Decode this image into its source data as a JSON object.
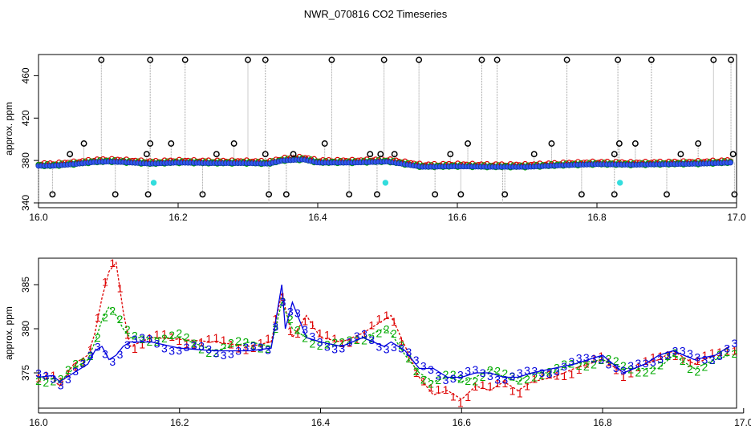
{
  "title": "NWR_070816  CO2 Timeseries",
  "colors": {
    "series1": "#dd0000",
    "series2": "#00aa00",
    "series3": "#0000dd",
    "overview_points": "#3355ee",
    "outliers": "#000000",
    "cyan_flags": "#33dddd",
    "drop_lines": "#999999",
    "axis": "#000000"
  },
  "chart_data": [
    {
      "type": "scatter",
      "panel": "top",
      "xlabel": "",
      "ylabel": "approx. ppm",
      "xlim": [
        16.0,
        17.0
      ],
      "ylim": [
        340,
        480
      ],
      "x_ticks": [
        16.0,
        16.2,
        16.4,
        16.6,
        16.8,
        17.0
      ],
      "x_tick_labels": [
        "16.0",
        "16.2",
        "16.4",
        "16.6",
        "16.8",
        "17.0"
      ],
      "y_ticks": [
        340,
        380,
        420,
        460
      ],
      "y_tick_labels": [
        "340",
        "380",
        "420",
        "460"
      ],
      "grid": false,
      "baseline": [
        [
          16.0,
          375
        ],
        [
          16.02,
          375
        ],
        [
          16.05,
          376.5
        ],
        [
          16.08,
          378.5
        ],
        [
          16.1,
          379
        ],
        [
          16.12,
          378.5
        ],
        [
          16.16,
          377
        ],
        [
          16.2,
          378
        ],
        [
          16.25,
          377.5
        ],
        [
          16.3,
          377.5
        ],
        [
          16.33,
          377
        ],
        [
          16.35,
          380
        ],
        [
          16.38,
          381
        ],
        [
          16.4,
          378
        ],
        [
          16.45,
          378
        ],
        [
          16.5,
          379
        ],
        [
          16.52,
          377
        ],
        [
          16.55,
          374
        ],
        [
          16.6,
          374.5
        ],
        [
          16.65,
          374
        ],
        [
          16.7,
          374
        ],
        [
          16.75,
          375.5
        ],
        [
          16.8,
          376.5
        ],
        [
          16.85,
          376
        ],
        [
          16.9,
          376.5
        ],
        [
          16.95,
          377
        ],
        [
          16.99,
          378
        ]
      ],
      "outliers_high": [
        16.09,
        16.16,
        16.21,
        16.3,
        16.325,
        16.42,
        16.495,
        16.545,
        16.635,
        16.657,
        16.757,
        16.83,
        16.878,
        16.967,
        16.992
      ],
      "outliers_high_value": 475,
      "outliers_low": [
        16.02,
        16.11,
        16.157,
        16.235,
        16.33,
        16.355,
        16.445,
        16.485,
        16.568,
        16.605,
        16.668,
        16.778,
        16.825,
        16.9,
        16.997
      ],
      "outliers_low_value": 348,
      "outliers_mid": [
        [
          16.045,
          386
        ],
        [
          16.065,
          396
        ],
        [
          16.155,
          386
        ],
        [
          16.16,
          396
        ],
        [
          16.19,
          396
        ],
        [
          16.255,
          386
        ],
        [
          16.28,
          396
        ],
        [
          16.325,
          386
        ],
        [
          16.365,
          386
        ],
        [
          16.41,
          396
        ],
        [
          16.475,
          386
        ],
        [
          16.49,
          386
        ],
        [
          16.51,
          386
        ],
        [
          16.59,
          386
        ],
        [
          16.615,
          396
        ],
        [
          16.71,
          386
        ],
        [
          16.735,
          396
        ],
        [
          16.825,
          386
        ],
        [
          16.832,
          396
        ],
        [
          16.855,
          396
        ],
        [
          16.92,
          386
        ],
        [
          16.945,
          396
        ],
        [
          16.995,
          386
        ]
      ],
      "cyan_points": [
        [
          16.165,
          359
        ],
        [
          16.497,
          359
        ],
        [
          16.833,
          359
        ]
      ]
    },
    {
      "type": "line",
      "panel": "bottom",
      "xlabel": "",
      "ylabel": "approx. ppm",
      "xlim": [
        16.0,
        16.99
      ],
      "ylim": [
        371,
        388
      ],
      "x_ticks": [
        16.0,
        16.2,
        16.4,
        16.6,
        16.8,
        17.0
      ],
      "x_tick_labels": [
        "16.0",
        "16.2",
        "16.4",
        "16.6",
        "16.8",
        "17.0"
      ],
      "y_ticks": [
        375,
        380,
        385
      ],
      "y_tick_labels": [
        "375",
        "380",
        "385"
      ],
      "grid": false,
      "marker_style": "series number",
      "series": [
        {
          "marker": "1",
          "values": [
            [
              16.0,
              374.5
            ],
            [
              16.02,
              374.3
            ],
            [
              16.03,
              373.5
            ],
            [
              16.05,
              376
            ],
            [
              16.07,
              377
            ],
            [
              16.08,
              379.5
            ],
            [
              16.09,
              383.5
            ],
            [
              16.1,
              386.5
            ],
            [
              16.11,
              387.5
            ],
            [
              16.12,
              382
            ],
            [
              16.13,
              378
            ],
            [
              16.16,
              379
            ],
            [
              16.2,
              378.8
            ],
            [
              16.25,
              378.5
            ],
            [
              16.3,
              378
            ],
            [
              16.33,
              378.5
            ],
            [
              16.345,
              384
            ],
            [
              16.36,
              379
            ],
            [
              16.38,
              381.5
            ],
            [
              16.4,
              379
            ],
            [
              16.43,
              378.5
            ],
            [
              16.46,
              379.5
            ],
            [
              16.49,
              381
            ],
            [
              16.5,
              381.5
            ],
            [
              16.52,
              378
            ],
            [
              16.54,
              374.5
            ],
            [
              16.56,
              372.5
            ],
            [
              16.58,
              373
            ],
            [
              16.6,
              372
            ],
            [
              16.62,
              373.5
            ],
            [
              16.64,
              373
            ],
            [
              16.66,
              374
            ],
            [
              16.68,
              373
            ],
            [
              16.7,
              374
            ],
            [
              16.73,
              374.5
            ],
            [
              16.76,
              375.5
            ],
            [
              16.8,
              376.5
            ],
            [
              16.83,
              375
            ],
            [
              16.86,
              376
            ],
            [
              16.88,
              376.5
            ],
            [
              16.9,
              377.5
            ],
            [
              16.93,
              376
            ],
            [
              16.96,
              377
            ],
            [
              16.98,
              378
            ]
          ]
        },
        {
          "marker": "2",
          "values": [
            [
              16.0,
              374.5
            ],
            [
              16.02,
              374.3
            ],
            [
              16.03,
              374
            ],
            [
              16.05,
              375.5
            ],
            [
              16.07,
              376.5
            ],
            [
              16.08,
              378.5
            ],
            [
              16.09,
              381
            ],
            [
              16.1,
              382.5
            ],
            [
              16.11,
              381.5
            ],
            [
              16.12,
              380
            ],
            [
              16.13,
              379
            ],
            [
              16.16,
              379
            ],
            [
              16.2,
              379
            ],
            [
              16.25,
              377.5
            ],
            [
              16.3,
              378.5
            ],
            [
              16.33,
              378
            ],
            [
              16.345,
              383
            ],
            [
              16.36,
              380
            ],
            [
              16.38,
              379
            ],
            [
              16.4,
              378.5
            ],
            [
              16.43,
              378
            ],
            [
              16.46,
              379
            ],
            [
              16.49,
              380
            ],
            [
              16.5,
              379.5
            ],
            [
              16.52,
              377
            ],
            [
              16.54,
              375
            ],
            [
              16.56,
              374
            ],
            [
              16.58,
              374.5
            ],
            [
              16.6,
              374
            ],
            [
              16.62,
              374.5
            ],
            [
              16.64,
              375.5
            ],
            [
              16.66,
              374.5
            ],
            [
              16.68,
              374
            ],
            [
              16.7,
              375
            ],
            [
              16.73,
              375
            ],
            [
              16.76,
              376
            ],
            [
              16.8,
              376.5
            ],
            [
              16.83,
              375.5
            ],
            [
              16.86,
              375.5
            ],
            [
              16.88,
              375.5
            ],
            [
              16.9,
              377
            ],
            [
              16.93,
              375.5
            ],
            [
              16.96,
              376.5
            ],
            [
              16.98,
              377
            ]
          ]
        },
        {
          "marker": "3",
          "values": [
            [
              16.0,
              374.5
            ],
            [
              16.02,
              374.7
            ],
            [
              16.03,
              374
            ],
            [
              16.05,
              375
            ],
            [
              16.07,
              376
            ],
            [
              16.08,
              377.5
            ],
            [
              16.09,
              378
            ],
            [
              16.1,
              376.5
            ],
            [
              16.11,
              377
            ],
            [
              16.12,
              378
            ],
            [
              16.13,
              378.5
            ],
            [
              16.16,
              378.5
            ],
            [
              16.2,
              377.8
            ],
            [
              16.25,
              377.5
            ],
            [
              16.3,
              377.5
            ],
            [
              16.33,
              377.8
            ],
            [
              16.345,
              385
            ],
            [
              16.35,
              380
            ],
            [
              16.36,
              383
            ],
            [
              16.38,
              379
            ],
            [
              16.4,
              378.5
            ],
            [
              16.43,
              378
            ],
            [
              16.46,
              379
            ],
            [
              16.49,
              378
            ],
            [
              16.5,
              378.5
            ],
            [
              16.52,
              377.5
            ],
            [
              16.54,
              375.5
            ],
            [
              16.56,
              375.5
            ],
            [
              16.58,
              374.5
            ],
            [
              16.6,
              374.5
            ],
            [
              16.62,
              375
            ],
            [
              16.64,
              375
            ],
            [
              16.66,
              374.5
            ],
            [
              16.68,
              374.5
            ],
            [
              16.7,
              375
            ],
            [
              16.73,
              375.5
            ],
            [
              16.76,
              376
            ],
            [
              16.8,
              377
            ],
            [
              16.83,
              375
            ],
            [
              16.86,
              376
            ],
            [
              16.88,
              377
            ],
            [
              16.9,
              377.5
            ],
            [
              16.93,
              376.5
            ],
            [
              16.96,
              377
            ],
            [
              16.98,
              378
            ]
          ]
        }
      ]
    }
  ]
}
